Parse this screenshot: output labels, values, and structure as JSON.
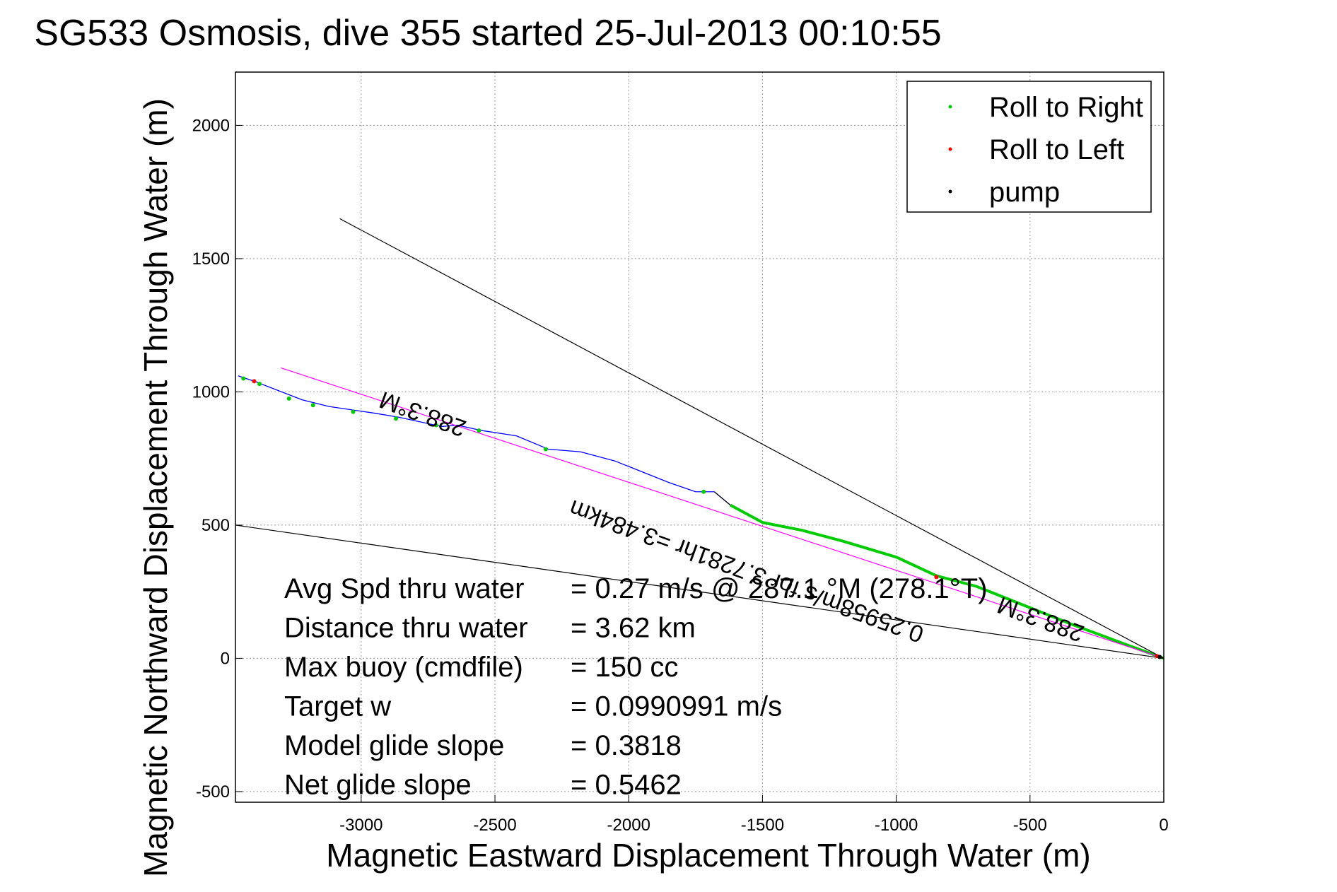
{
  "chart_data": {
    "type": "line",
    "title": "SG533 Osmosis, dive 355 started 25-Jul-2013 00:10:55",
    "xlabel": "Magnetic Eastward Displacement Through Water (m)",
    "ylabel": "Magnetic Northward Displacement Through Water (m)",
    "xlim": [
      -3470,
      0
    ],
    "ylim": [
      -540,
      2200
    ],
    "xticks": [
      -3000,
      -2500,
      -2000,
      -1500,
      -1000,
      -500,
      0
    ],
    "yticks": [
      -500,
      0,
      500,
      1000,
      1500,
      2000
    ],
    "grid": true,
    "legend_position": "top-right",
    "legend": [
      {
        "label": "Roll to Right",
        "color": "#00cc00"
      },
      {
        "label": "Roll to Left",
        "color": "#ff0000"
      },
      {
        "label": "pump",
        "color": "#000000"
      }
    ],
    "series": [
      {
        "color": "#0000ff",
        "x": [
          0,
          -150,
          -350,
          -550,
          -700,
          -850,
          -1000,
          -1200,
          -1350,
          -1500,
          -1620,
          -1680,
          -1750,
          -1850,
          -1950,
          -2050,
          -2180,
          -2300,
          -2420,
          -2550,
          -2640,
          -2700,
          -2860,
          -2950,
          -3120,
          -3220,
          -3400,
          -3460
        ],
        "y": [
          0,
          55,
          130,
          210,
          270,
          310,
          380,
          440,
          480,
          510,
          575,
          625,
          625,
          660,
          700,
          740,
          775,
          785,
          835,
          855,
          875,
          870,
          905,
          920,
          945,
          970,
          1040,
          1060
        ]
      },
      {
        "color": "#00cc00",
        "x": [
          0,
          -150,
          -350,
          -550,
          -700,
          -850,
          -1000,
          -1200,
          -1350,
          -1500,
          -1620
        ],
        "y": [
          0,
          55,
          130,
          210,
          270,
          310,
          380,
          440,
          480,
          510,
          575
        ]
      },
      {
        "color": "#000000",
        "x": [
          -1620,
          -1680
        ],
        "y": [
          575,
          625
        ]
      },
      {
        "color": "#ff00ff",
        "x": [
          0,
          -3300
        ],
        "y": [
          0,
          1090
        ]
      },
      {
        "color": "#000000",
        "x": [
          0,
          -3080
        ],
        "y": [
          0,
          1650
        ]
      },
      {
        "color": "#000000",
        "x": [
          0,
          -3470
        ],
        "y": [
          0,
          500
        ]
      }
    ],
    "points": [
      {
        "x": -1720,
        "y": 625,
        "color": "#00cc00"
      },
      {
        "x": -2310,
        "y": 785,
        "color": "#00cc00"
      },
      {
        "x": -2560,
        "y": 855,
        "color": "#00cc00"
      },
      {
        "x": -2720,
        "y": 875,
        "color": "#00cc00"
      },
      {
        "x": -2870,
        "y": 900,
        "color": "#00cc00"
      },
      {
        "x": -3030,
        "y": 925,
        "color": "#00cc00"
      },
      {
        "x": -3180,
        "y": 950,
        "color": "#00cc00"
      },
      {
        "x": -3270,
        "y": 975,
        "color": "#00cc00"
      },
      {
        "x": -3380,
        "y": 1030,
        "color": "#00cc00"
      },
      {
        "x": -3440,
        "y": 1050,
        "color": "#00cc00"
      },
      {
        "x": -3400,
        "y": 1040,
        "color": "#ff0000"
      },
      {
        "x": -850,
        "y": 305,
        "color": "#ff0000"
      },
      {
        "x": -25,
        "y": 8,
        "color": "#ff0000"
      },
      {
        "x": -15,
        "y": 5,
        "color": "#000000"
      }
    ],
    "annotations": [
      {
        "text": "288.3°M",
        "x": -2760,
        "y": 945,
        "angle": 200
      },
      {
        "text": "0.25958m/s for 3.7281hr =3.484km",
        "x": -1550,
        "y": 355,
        "angle": 200
      },
      {
        "text": "288.3°M",
        "x": -450,
        "y": 175,
        "angle": 200
      }
    ],
    "stats": [
      {
        "label": "Avg Spd thru water",
        "value": "=  0.27 m/s @ 287.1 °M (278.1°T)"
      },
      {
        "label": "Distance thru water",
        "value": "=  3.62 km"
      },
      {
        "label": "Max buoy (cmdfile)",
        "value": "= 150 cc"
      },
      {
        "label": "Target w",
        "value": "= 0.0990991 m/s"
      },
      {
        "label": "Model glide slope",
        "value": "= 0.3818"
      },
      {
        "label": "Net glide slope",
        "value": "= 0.5462"
      }
    ]
  }
}
